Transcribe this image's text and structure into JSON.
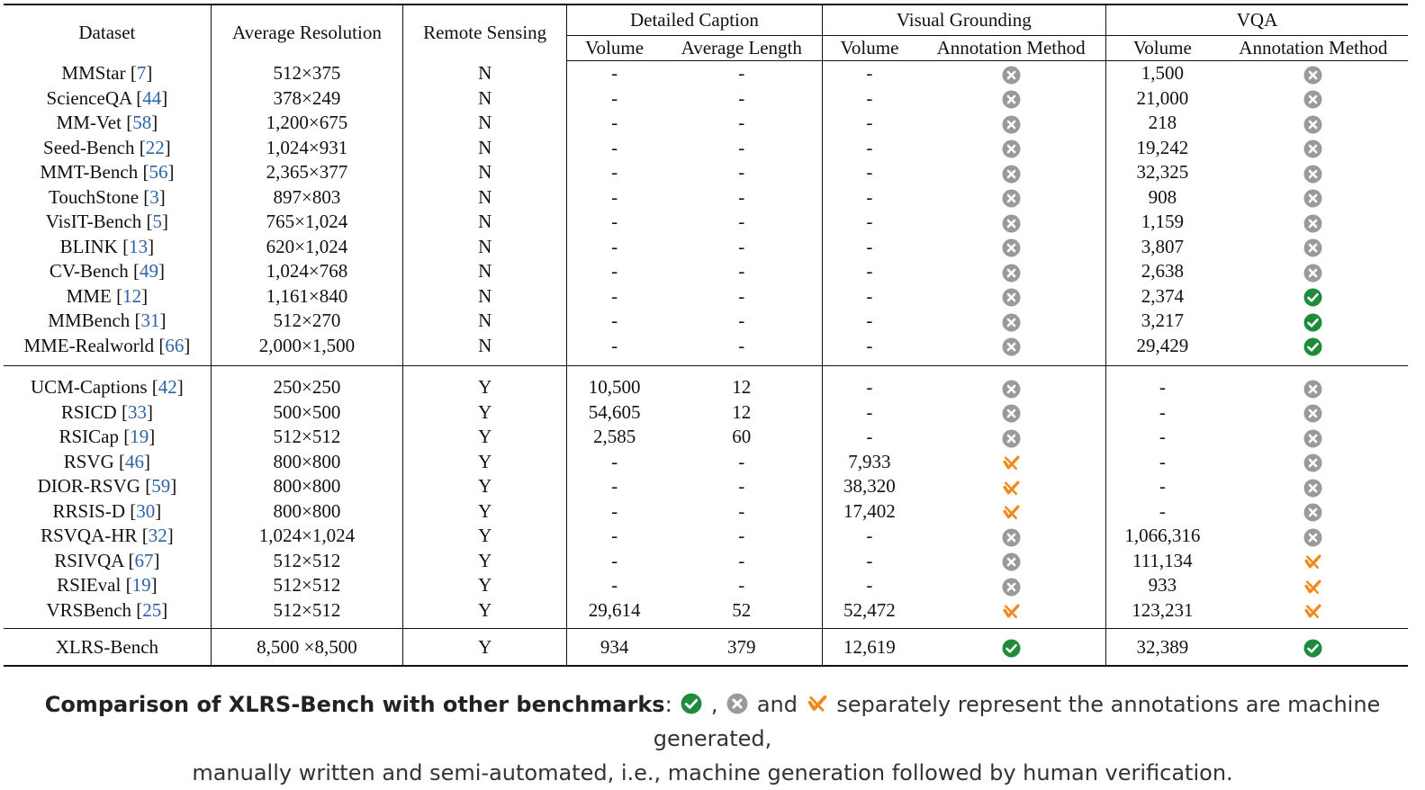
{
  "colors": {
    "check": "#1e8c3a",
    "cross_gray": "#9a9a9a",
    "semi_orange": "#f08a1c",
    "ref": "#2b63a8"
  },
  "icons": {
    "check": "check-circle-icon",
    "cross": "x-circle-icon",
    "semi": "semi-automated-icon"
  },
  "headers": {
    "dataset": "Dataset",
    "avg_res": "Average Resolution",
    "remote": "Remote Sensing",
    "detailed_caption": "Detailed Caption",
    "visual_grounding": "Visual Grounding",
    "vqa": "VQA",
    "volume": "Volume",
    "avg_length": "Average Length",
    "annotation_method": "Annotation Method"
  },
  "rows": [
    {
      "name": "MMStar ",
      "ref": "7",
      "res": "512×375",
      "rs": "N",
      "dc_vol": "-",
      "dc_len": "-",
      "vg_vol": "-",
      "vg_ann": "cross",
      "vqa_vol": "1,500",
      "vqa_ann": "cross"
    },
    {
      "name": "ScienceQA ",
      "ref": "44",
      "res": "378×249",
      "rs": "N",
      "dc_vol": "-",
      "dc_len": "-",
      "vg_vol": "-",
      "vg_ann": "cross",
      "vqa_vol": "21,000",
      "vqa_ann": "cross"
    },
    {
      "name": "MM-Vet ",
      "ref": "58",
      "res": "1,200×675",
      "rs": "N",
      "dc_vol": "-",
      "dc_len": "-",
      "vg_vol": "-",
      "vg_ann": "cross",
      "vqa_vol": "218",
      "vqa_ann": "cross"
    },
    {
      "name": "Seed-Bench ",
      "ref": "22",
      "res": "1,024×931",
      "rs": "N",
      "dc_vol": "-",
      "dc_len": "-",
      "vg_vol": "-",
      "vg_ann": "cross",
      "vqa_vol": "19,242",
      "vqa_ann": "cross"
    },
    {
      "name": "MMT-Bench ",
      "ref": "56",
      "res": "2,365×377",
      "rs": "N",
      "dc_vol": "-",
      "dc_len": "-",
      "vg_vol": "-",
      "vg_ann": "cross",
      "vqa_vol": "32,325",
      "vqa_ann": "cross"
    },
    {
      "name": "TouchStone ",
      "ref": "3",
      "res": "897×803",
      "rs": "N",
      "dc_vol": "-",
      "dc_len": "-",
      "vg_vol": "-",
      "vg_ann": "cross",
      "vqa_vol": "908",
      "vqa_ann": "cross"
    },
    {
      "name": "VisIT-Bench ",
      "ref": "5",
      "res": "765×1,024",
      "rs": "N",
      "dc_vol": "-",
      "dc_len": "-",
      "vg_vol": "-",
      "vg_ann": "cross",
      "vqa_vol": "1,159",
      "vqa_ann": "cross"
    },
    {
      "name": "BLINK ",
      "ref": "13",
      "res": "620×1,024",
      "rs": "N",
      "dc_vol": "-",
      "dc_len": "-",
      "vg_vol": "-",
      "vg_ann": "cross",
      "vqa_vol": "3,807",
      "vqa_ann": "cross"
    },
    {
      "name": "CV-Bench ",
      "ref": "49",
      "res": "1,024×768",
      "rs": "N",
      "dc_vol": "-",
      "dc_len": "-",
      "vg_vol": "-",
      "vg_ann": "cross",
      "vqa_vol": "2,638",
      "vqa_ann": "cross"
    },
    {
      "name": "MME ",
      "ref": "12",
      "res": "1,161×840",
      "rs": "N",
      "dc_vol": "-",
      "dc_len": "-",
      "vg_vol": "-",
      "vg_ann": "cross",
      "vqa_vol": "2,374",
      "vqa_ann": "check"
    },
    {
      "name": "MMBench ",
      "ref": "31",
      "res": "512×270",
      "rs": "N",
      "dc_vol": "-",
      "dc_len": "-",
      "vg_vol": "-",
      "vg_ann": "cross",
      "vqa_vol": "3,217",
      "vqa_ann": "check"
    },
    {
      "name": "MME-Realworld ",
      "ref": "66",
      "res": "2,000×1,500",
      "rs": "N",
      "dc_vol": "-",
      "dc_len": "-",
      "vg_vol": "-",
      "vg_ann": "cross",
      "vqa_vol": "29,429",
      "vqa_ann": "check"
    },
    {
      "name": "UCM-Captions ",
      "ref": "42",
      "res": "250×250",
      "rs": "Y",
      "dc_vol": "10,500",
      "dc_len": "12",
      "vg_vol": "-",
      "vg_ann": "cross",
      "vqa_vol": "-",
      "vqa_ann": "cross"
    },
    {
      "name": "RSICD ",
      "ref": "33",
      "res": "500×500",
      "rs": "Y",
      "dc_vol": "54,605",
      "dc_len": "12",
      "vg_vol": "-",
      "vg_ann": "cross",
      "vqa_vol": "-",
      "vqa_ann": "cross"
    },
    {
      "name": "RSICap ",
      "ref": "19",
      "res": "512×512",
      "rs": "Y",
      "dc_vol": "2,585",
      "dc_len": "60",
      "vg_vol": "-",
      "vg_ann": "cross",
      "vqa_vol": "-",
      "vqa_ann": "cross"
    },
    {
      "name": "RSVG ",
      "ref": "46",
      "res": "800×800",
      "rs": "Y",
      "dc_vol": "-",
      "dc_len": "-",
      "vg_vol": "7,933",
      "vg_ann": "semi",
      "vqa_vol": "-",
      "vqa_ann": "cross"
    },
    {
      "name": "DIOR-RSVG ",
      "ref": "59",
      "res": "800×800",
      "rs": "Y",
      "dc_vol": "-",
      "dc_len": "-",
      "vg_vol": "38,320",
      "vg_ann": "semi",
      "vqa_vol": "-",
      "vqa_ann": "cross"
    },
    {
      "name": "RRSIS-D ",
      "ref": "30",
      "res": "800×800",
      "rs": "Y",
      "dc_vol": "-",
      "dc_len": "-",
      "vg_vol": "17,402",
      "vg_ann": "semi",
      "vqa_vol": "-",
      "vqa_ann": "cross"
    },
    {
      "name": "RSVQA-HR ",
      "ref": "32",
      "res": "1,024×1,024",
      "rs": "Y",
      "dc_vol": "-",
      "dc_len": "-",
      "vg_vol": "-",
      "vg_ann": "cross",
      "vqa_vol": "1,066,316",
      "vqa_ann": "cross"
    },
    {
      "name": "RSIVQA ",
      "ref": "67",
      "res": "512×512",
      "rs": "Y",
      "dc_vol": "-",
      "dc_len": "-",
      "vg_vol": "-",
      "vg_ann": "cross",
      "vqa_vol": "111,134",
      "vqa_ann": "semi"
    },
    {
      "name": "RSIEval ",
      "ref": "19",
      "res": "512×512",
      "rs": "Y",
      "dc_vol": "-",
      "dc_len": "-",
      "vg_vol": "-",
      "vg_ann": "cross",
      "vqa_vol": "933",
      "vqa_ann": "semi"
    },
    {
      "name": "VRSBench ",
      "ref": "25",
      "res": "512×512",
      "rs": "Y",
      "dc_vol": "29,614",
      "dc_len": "52",
      "vg_vol": "52,472",
      "vg_ann": "semi",
      "vqa_vol": "123,231",
      "vqa_ann": "semi"
    },
    {
      "name": "XLRS-Bench",
      "ref": "",
      "res": "8,500 ×8,500",
      "rs": "Y",
      "dc_vol": "934",
      "dc_len": "379",
      "vg_vol": "12,619",
      "vg_ann": "check",
      "vqa_vol": "32,389",
      "vqa_ann": "check"
    }
  ],
  "caption": {
    "lead": "Comparison of XLRS-Bench with other benchmarks",
    "colon": ": ",
    "sep1": " , ",
    "sep2": " and ",
    "text1": " separately represent the annotations are machine generated,",
    "text2": "manually written and semi-automated, i.e., machine generation followed by human verification."
  }
}
